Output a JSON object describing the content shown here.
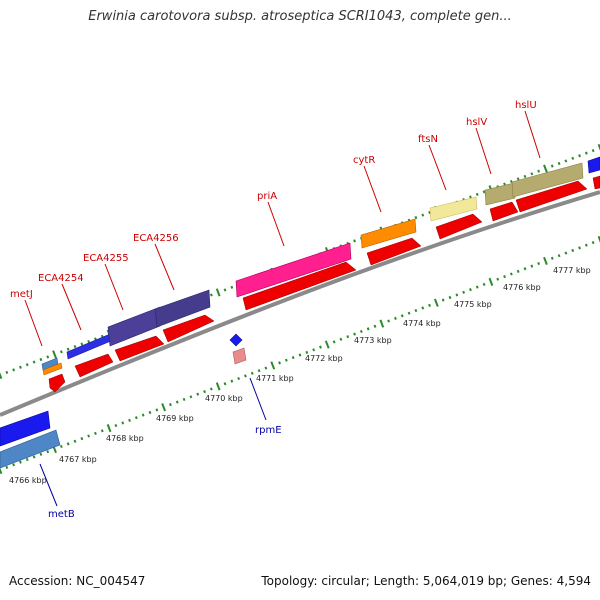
{
  "title": "Erwinia carotovora subsp. atroseptica SCRI1043, complete gen...",
  "footer": {
    "accession": "Accession: NC_004547",
    "info": "Topology: circular; Length: 5,064,019 bp; Genes: 4,594"
  },
  "scale_labels": [
    "4766 kbp",
    "4767 kbp",
    "4768 kbp",
    "4769 kbp",
    "4770 kbp",
    "4771 kbp",
    "4772 kbp",
    "4773 kbp",
    "4774 kbp",
    "4775 kbp",
    "4776 kbp",
    "4777 kbp"
  ],
  "upper_genes": [
    "metJ",
    "ECA4254",
    "ECA4255",
    "ECA4256",
    "priA",
    "cytR",
    "ftsN",
    "hslV",
    "hslU"
  ],
  "lower_genes": [
    "metB",
    "rpmE"
  ],
  "colors": {
    "upper_label": "#cc0000",
    "lower_label": "#0000aa",
    "tick": "#2a8a2a",
    "backbone": "#888888",
    "cds": "#ee0000"
  }
}
